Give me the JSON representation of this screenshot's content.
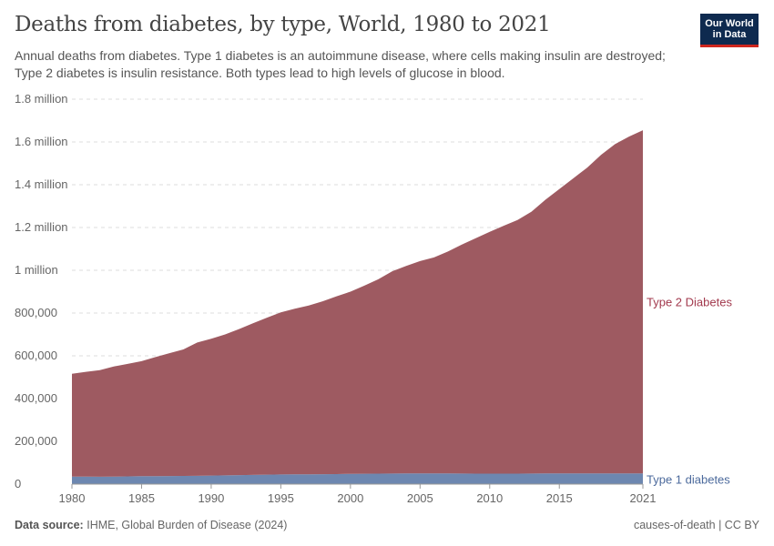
{
  "header": {
    "title": "Deaths from diabetes, by type, World, 1980 to 2021",
    "subtitle": "Annual deaths from diabetes. Type 1 diabetes is an autoimmune disease, where cells making insulin are destroyed; Type 2 diabetes is insulin resistance. Both types lead to high levels of glucose in blood.",
    "logo": "Our World in Data"
  },
  "footer": {
    "source_label": "Data source:",
    "source": "IHME, Global Burden of Disease (2024)",
    "right": "causes-of-death | CC BY"
  },
  "chart_data": {
    "type": "area",
    "stacked": true,
    "title": "Deaths from diabetes, by type, World, 1980 to 2021",
    "xlim": [
      1980,
      2021
    ],
    "ylim": [
      0,
      1800000
    ],
    "grid": "horizontal dashed",
    "x_ticks": [
      1980,
      1985,
      1990,
      1995,
      2000,
      2005,
      2010,
      2015,
      2021
    ],
    "y_ticks": [
      {
        "v": 0,
        "label": "0"
      },
      {
        "v": 200000,
        "label": "200,000"
      },
      {
        "v": 400000,
        "label": "400,000"
      },
      {
        "v": 600000,
        "label": "600,000"
      },
      {
        "v": 800000,
        "label": "800,000"
      },
      {
        "v": 1000000,
        "label": "1 million"
      },
      {
        "v": 1200000,
        "label": "1.2 million"
      },
      {
        "v": 1400000,
        "label": "1.4 million"
      },
      {
        "v": 1600000,
        "label": "1.6 million"
      },
      {
        "v": 1800000,
        "label": "1.8 million"
      }
    ],
    "x": [
      1980,
      1981,
      1982,
      1983,
      1984,
      1985,
      1986,
      1987,
      1988,
      1989,
      1990,
      1991,
      1992,
      1993,
      1994,
      1995,
      1996,
      1997,
      1998,
      1999,
      2000,
      2001,
      2002,
      2003,
      2004,
      2005,
      2006,
      2007,
      2008,
      2009,
      2010,
      2011,
      2012,
      2013,
      2014,
      2015,
      2016,
      2017,
      2018,
      2019,
      2020,
      2021
    ],
    "series": [
      {
        "name": "Type 1 diabetes",
        "color": "#6d87b0",
        "label_color": "#4c6a9c",
        "values": [
          35000,
          35000,
          34500,
          35000,
          36000,
          37000,
          37500,
          38000,
          38500,
          39000,
          40000,
          41000,
          42000,
          43000,
          44000,
          45000,
          45500,
          46000,
          46500,
          47000,
          48000,
          48500,
          49000,
          49500,
          50000,
          50000,
          50000,
          50000,
          49500,
          49000,
          49000,
          49000,
          49000,
          49500,
          50000,
          50000,
          50000,
          50000,
          50000,
          50000,
          50000,
          50000
        ]
      },
      {
        "name": "Type 2 Diabetes",
        "color": "#9e5a61",
        "label_color": "#a2394d",
        "values": [
          481000,
          490000,
          498500,
          515000,
          526000,
          538000,
          556500,
          574000,
          591500,
          623000,
          640000,
          659000,
          683000,
          709000,
          734000,
          758000,
          774500,
          789000,
          808500,
          831000,
          852000,
          879500,
          909000,
          945500,
          970000,
          993000,
          1010000,
          1038000,
          1070500,
          1101000,
          1131000,
          1159000,
          1186000,
          1224500,
          1280000,
          1330000,
          1380000,
          1430000,
          1490000,
          1540000,
          1575000,
          1605000
        ]
      }
    ]
  }
}
